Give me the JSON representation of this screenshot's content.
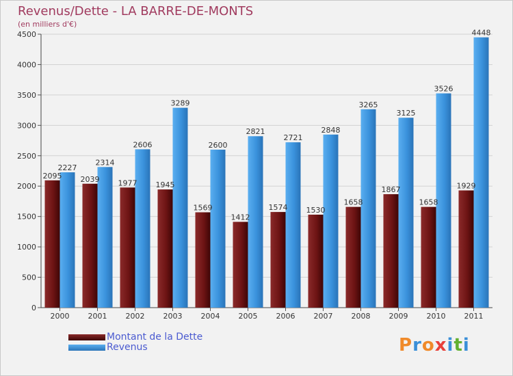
{
  "title": "Revenus/Dette - LA BARRE-DE-MONTS",
  "subtitle": "(en milliers d'€)",
  "logo": {
    "text": "Proxiti",
    "letters": [
      "P",
      "r",
      "o",
      "x",
      "i",
      "t",
      "i"
    ],
    "letter_colors": [
      "#f08a2a",
      "#3a8fd8",
      "#f08a2a",
      "#e8403a",
      "#3a8fd8",
      "#62b030",
      "#3a8fd8"
    ]
  },
  "chart_data": {
    "type": "bar",
    "categories": [
      "2000",
      "2001",
      "2002",
      "2003",
      "2004",
      "2005",
      "2006",
      "2007",
      "2008",
      "2009",
      "2010",
      "2011"
    ],
    "series": [
      {
        "name": "Montant de la Dette",
        "color": "#7a1a1a",
        "values": [
          2095,
          2039,
          1977,
          1945,
          1569,
          1412,
          1574,
          1530,
          1658,
          1867,
          1658,
          1929
        ]
      },
      {
        "name": "Revenus",
        "color": "#3a92dc",
        "values": [
          2227,
          2314,
          2606,
          3289,
          2600,
          2821,
          2721,
          2848,
          3265,
          3125,
          3526,
          4448
        ]
      }
    ],
    "ylim": [
      0,
      4500
    ],
    "yticks": [
      "0",
      "500",
      "1000",
      "1500",
      "2000",
      "2500",
      "3000",
      "3500",
      "4000",
      "4500"
    ],
    "grid": true,
    "legend_position": "bottom-left"
  }
}
